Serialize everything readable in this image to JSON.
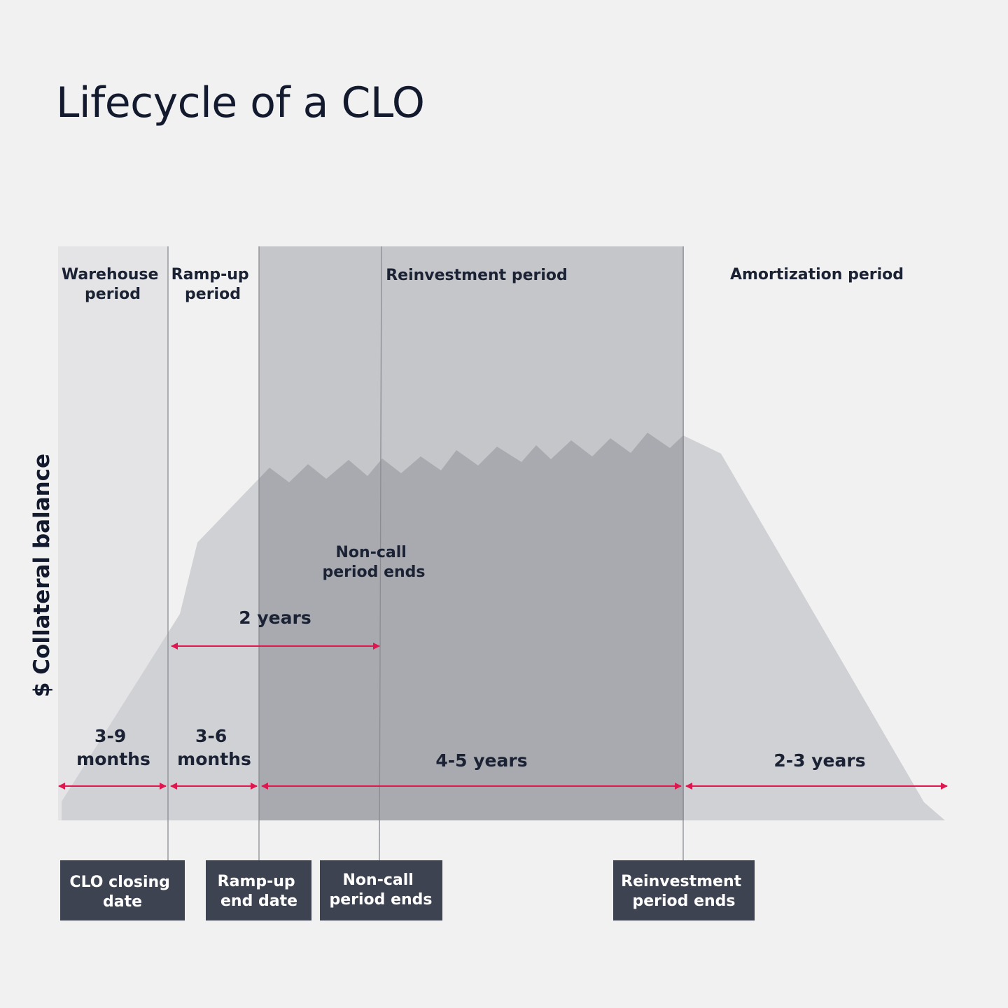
{
  "title": "Lifecycle of a CLO",
  "y_axis_label": "$ Collateral balance",
  "periods": {
    "warehouse": [
      "Warehouse",
      "period"
    ],
    "ramp_up": [
      "Ramp-up",
      "period"
    ],
    "reinvestment": "Reinvestment period",
    "amortization": "Amortization period"
  },
  "non_call_note": [
    "Non-call",
    "period ends"
  ],
  "durations": {
    "warehouse": [
      "3-9",
      "months"
    ],
    "ramp_up": [
      "3-6",
      "months"
    ],
    "non_call": "2 years",
    "reinvestment": "4-5 years",
    "amortization": "2-3 years"
  },
  "milestones": {
    "closing": [
      "CLO closing",
      "date"
    ],
    "ramp_up_end": [
      "Ramp-up",
      "end date"
    ],
    "non_call_end": [
      "Non-call",
      "period ends"
    ],
    "reinvestment_end": [
      "Reinvestment",
      "period ends"
    ]
  },
  "colors": {
    "background": "#f1f1f1",
    "warehouse_band": "#e4e4e6",
    "reinvestment_band": "#c5c6ca",
    "collateral_area": "#d0d1d5",
    "collateral_area_overlap": "#a8aaaf",
    "arrow": "#e0164f",
    "milestone_box": "#3e4351",
    "divider_line": "#8a8c92",
    "text_dark": "#1b2234"
  }
}
